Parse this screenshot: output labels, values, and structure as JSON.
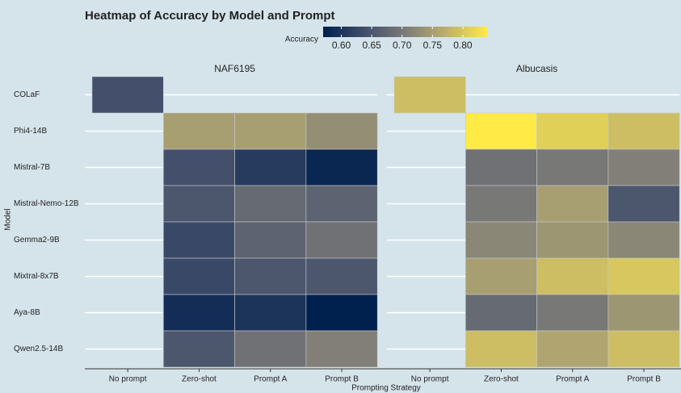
{
  "chart_data": {
    "type": "heatmap",
    "title": "Heatmap of Accuracy by Model and Prompt",
    "legend_title": "Accuracy",
    "x_label": "Prompting Strategy",
    "y_label": "Model",
    "x_categories": [
      "No prompt",
      "Zero-shot",
      "Prompt A",
      "Prompt B"
    ],
    "y_categories": [
      "COLaF",
      "Phi4-14B",
      "Mistral-7B",
      "Mistral-Nemo-12B",
      "Gemma2-9B",
      "Mixtral-8x7B",
      "Aya-8B",
      "Qwen2.5-14B"
    ],
    "facets": [
      {
        "name": "NAF6195",
        "values": [
          [
            0.64,
            null,
            null,
            null
          ],
          [
            null,
            0.75,
            0.75,
            0.73
          ],
          [
            null,
            0.64,
            0.61,
            0.58
          ],
          [
            null,
            0.65,
            0.68,
            0.67
          ],
          [
            null,
            0.63,
            0.67,
            0.69
          ],
          [
            null,
            0.63,
            0.65,
            0.65
          ],
          [
            null,
            0.59,
            0.6,
            0.57
          ],
          [
            null,
            0.65,
            0.69,
            0.71
          ]
        ]
      },
      {
        "name": "Albucasis",
        "values": [
          [
            0.79,
            null,
            null,
            null
          ],
          [
            null,
            0.84,
            0.81,
            0.79
          ],
          [
            null,
            0.69,
            0.7,
            0.71
          ],
          [
            null,
            0.7,
            0.75,
            0.65
          ],
          [
            null,
            0.72,
            0.74,
            0.72
          ],
          [
            null,
            0.75,
            0.79,
            0.8
          ],
          [
            null,
            0.68,
            0.7,
            0.74
          ],
          [
            null,
            0.79,
            0.76,
            0.79
          ]
        ]
      }
    ],
    "zlim": [
      0.57,
      0.84
    ],
    "zticks": [
      {
        "value": 0.6,
        "label": "0.60"
      },
      0.65,
      {
        "value": 0.7,
        "label": "0.70"
      },
      0.75,
      {
        "value": 0.8,
        "label": "0.80"
      }
    ],
    "colormap": [
      "#00204d",
      "#414d6b",
      "#7c7b78",
      "#bcaf6f",
      "#ffea46"
    ]
  }
}
